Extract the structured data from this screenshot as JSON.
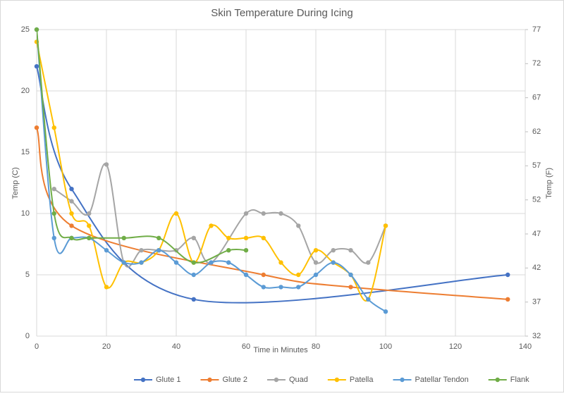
{
  "chart_data": {
    "type": "line",
    "title": "Skin Temperature During Icing",
    "x_label": "Time in Minutes",
    "y_label": "Temp (C)",
    "y2_label": "Temp (F)",
    "xlim": [
      0,
      140
    ],
    "xticks": [
      0,
      20,
      40,
      60,
      80,
      100,
      120,
      140
    ],
    "ylim": [
      0,
      25
    ],
    "yticks": [
      0,
      5,
      10,
      15,
      20,
      25
    ],
    "y2lim": [
      32,
      77
    ],
    "y2ticks": [
      32,
      37,
      42,
      47,
      52,
      57,
      62,
      67,
      72,
      77
    ],
    "grid": true,
    "smooth": true,
    "legend": "bottom",
    "series": [
      {
        "name": "Glute 1",
        "color": "#4472c4",
        "x": [
          0,
          10,
          45,
          135
        ],
        "values": [
          22,
          12,
          3,
          5
        ]
      },
      {
        "name": "Glute 2",
        "color": "#ed7d31",
        "x": [
          0,
          10,
          65,
          90,
          135
        ],
        "values": [
          17,
          9,
          5,
          4,
          3
        ]
      },
      {
        "name": "Quad",
        "color": "#a5a5a5",
        "x": [
          5,
          10,
          15,
          20,
          25,
          30,
          35,
          40,
          45,
          50,
          60,
          65,
          70,
          75,
          80,
          85,
          90,
          95,
          100
        ],
        "values": [
          12,
          11,
          10,
          14,
          6,
          7,
          7,
          7,
          8,
          6,
          10,
          10,
          10,
          9,
          6,
          7,
          7,
          6,
          9
        ]
      },
      {
        "name": "Patella",
        "color": "#ffc000",
        "x": [
          0,
          5,
          10,
          15,
          20,
          25,
          30,
          35,
          40,
          45,
          50,
          55,
          60,
          65,
          70,
          75,
          80,
          85,
          90,
          95,
          100
        ],
        "values": [
          24,
          17,
          10,
          9,
          4,
          6,
          6,
          7,
          10,
          6,
          9,
          8,
          8,
          8,
          6,
          5,
          7,
          6,
          5,
          3,
          9
        ]
      },
      {
        "name": "Patellar Tendon",
        "color": "#5b9bd5",
        "x": [
          0,
          5,
          10,
          15,
          20,
          25,
          30,
          35,
          40,
          45,
          50,
          55,
          60,
          65,
          70,
          75,
          80,
          85,
          90,
          95,
          100
        ],
        "values": [
          25,
          8,
          8,
          8,
          7,
          6,
          6,
          7,
          6,
          5,
          6,
          6,
          5,
          4,
          4,
          4,
          5,
          6,
          5,
          3,
          2
        ]
      },
      {
        "name": "Flank",
        "color": "#70ad47",
        "x": [
          0,
          5,
          10,
          15,
          25,
          35,
          45,
          55,
          60
        ],
        "values": [
          25,
          10,
          8,
          8,
          8,
          8,
          6,
          7,
          7
        ]
      }
    ]
  }
}
